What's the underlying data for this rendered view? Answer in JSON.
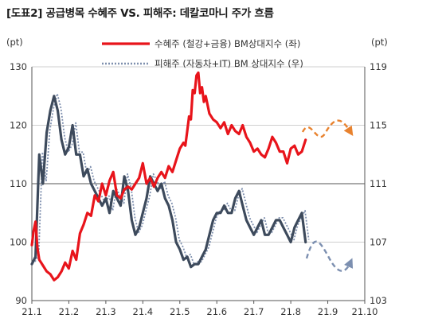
{
  "title": "[도표2] 공급병목 수혜주 VS. 피해주: 데칼코마니 주가 흐름",
  "chart_data": {
    "type": "line",
    "left_unit": "(pt)",
    "right_unit": "(pt)",
    "left_ylim": [
      90,
      130
    ],
    "right_ylim": [
      103,
      119
    ],
    "left_ticks": [
      90,
      100,
      110,
      120,
      130
    ],
    "right_ticks": [
      103,
      107,
      111,
      115,
      119
    ],
    "x_ticks": [
      "21.1",
      "21.2",
      "21.3",
      "21.4",
      "21.5",
      "21.6",
      "21.7",
      "21.8",
      "21.9",
      "21.10"
    ],
    "x_range": [
      1,
      10
    ],
    "colors": {
      "beneficiary": "#e8141b",
      "victim": "#3d4a5c",
      "victim_dot": "#7e8fae",
      "forecast_red": "#e8822e",
      "forecast_blue": "#7c8fb0",
      "grid": "#cfcfcf",
      "axis": "#555555"
    },
    "series": [
      {
        "name": "수혜주 (철강+금융) BM상대지수 (좌)",
        "axis": "left",
        "x": [
          1.0,
          1.05,
          1.1,
          1.15,
          1.2,
          1.25,
          1.3,
          1.4,
          1.5,
          1.6,
          1.7,
          1.8,
          1.9,
          2.0,
          2.1,
          2.2,
          2.3,
          2.4,
          2.5,
          2.6,
          2.7,
          2.8,
          2.9,
          3.0,
          3.1,
          3.2,
          3.3,
          3.4,
          3.5,
          3.6,
          3.7,
          3.8,
          3.9,
          4.0,
          4.1,
          4.2,
          4.3,
          4.4,
          4.5,
          4.6,
          4.7,
          4.8,
          4.9,
          5.0,
          5.1,
          5.15,
          5.2,
          5.25,
          5.3,
          5.35,
          5.4,
          5.45,
          5.5,
          5.55,
          5.6,
          5.65,
          5.7,
          5.75,
          5.8,
          5.9,
          6.0,
          6.1,
          6.2,
          6.3,
          6.4,
          6.5,
          6.6,
          6.7,
          6.8,
          6.9,
          7.0,
          7.1,
          7.2,
          7.3,
          7.4,
          7.5,
          7.6,
          7.7,
          7.8,
          7.9,
          8.0,
          8.1,
          8.2,
          8.3,
          8.4
        ],
        "values": [
          99.5,
          102.0,
          103.5,
          99.0,
          97.0,
          96.5,
          96.0,
          95.0,
          94.5,
          93.5,
          94.0,
          95.0,
          96.5,
          95.5,
          98.5,
          97.0,
          101.5,
          103.0,
          105.0,
          104.5,
          108.0,
          107.0,
          110.0,
          108.0,
          110.5,
          112.0,
          108.0,
          107.5,
          109.0,
          109.5,
          109.0,
          110.0,
          111.0,
          113.5,
          110.0,
          111.0,
          109.5,
          111.0,
          112.0,
          111.0,
          113.0,
          112.0,
          114.0,
          116.0,
          117.0,
          116.5,
          119.0,
          121.5,
          121.0,
          126.0,
          125.5,
          128.5,
          129.0,
          125.5,
          126.5,
          124.0,
          125.0,
          123.5,
          122.0,
          121.0,
          120.5,
          119.5,
          120.5,
          118.5,
          120.0,
          119.0,
          118.5,
          120.0,
          118.0,
          117.0,
          115.5,
          116.0,
          115.0,
          114.5,
          116.0,
          118.0,
          117.0,
          115.5,
          115.5,
          113.5,
          116.0,
          116.5,
          115.0,
          115.5,
          117.5
        ]
      },
      {
        "name": "피해주 (자동차+IT) BM 상대지수 (우)",
        "axis": "right",
        "x": [
          1.0,
          1.1,
          1.2,
          1.3,
          1.4,
          1.5,
          1.6,
          1.7,
          1.8,
          1.9,
          2.0,
          2.1,
          2.2,
          2.3,
          2.4,
          2.5,
          2.6,
          2.7,
          2.8,
          2.9,
          3.0,
          3.1,
          3.2,
          3.3,
          3.4,
          3.5,
          3.6,
          3.7,
          3.8,
          3.9,
          4.0,
          4.1,
          4.2,
          4.3,
          4.4,
          4.5,
          4.6,
          4.7,
          4.8,
          4.9,
          5.0,
          5.1,
          5.2,
          5.3,
          5.4,
          5.5,
          5.6,
          5.7,
          5.8,
          5.9,
          6.0,
          6.1,
          6.2,
          6.3,
          6.4,
          6.5,
          6.6,
          6.7,
          6.8,
          6.9,
          7.0,
          7.1,
          7.2,
          7.3,
          7.4,
          7.5,
          7.6,
          7.7,
          7.8,
          7.9,
          8.0,
          8.1,
          8.2,
          8.3,
          8.4
        ],
        "values": [
          105.5,
          106.0,
          113.0,
          111.0,
          114.5,
          116.0,
          117.0,
          116.0,
          114.0,
          113.0,
          113.5,
          115.0,
          113.0,
          113.0,
          111.5,
          112.0,
          111.0,
          110.5,
          110.0,
          109.5,
          110.0,
          109.0,
          110.5,
          110.0,
          109.5,
          111.5,
          110.5,
          108.5,
          107.5,
          108.0,
          109.0,
          110.0,
          111.5,
          111.0,
          110.5,
          111.0,
          110.0,
          109.5,
          108.5,
          107.0,
          106.5,
          105.8,
          106.0,
          105.3,
          105.5,
          105.5,
          106.0,
          106.5,
          107.5,
          108.5,
          109.0,
          109.0,
          109.5,
          109.0,
          109.0,
          110.0,
          110.5,
          109.5,
          108.5,
          108.0,
          107.5,
          108.0,
          108.5,
          107.5,
          107.5,
          108.0,
          108.5,
          108.5,
          108.0,
          107.5,
          107.0,
          108.0,
          108.5,
          109.0,
          107.0
        ]
      }
    ]
  }
}
